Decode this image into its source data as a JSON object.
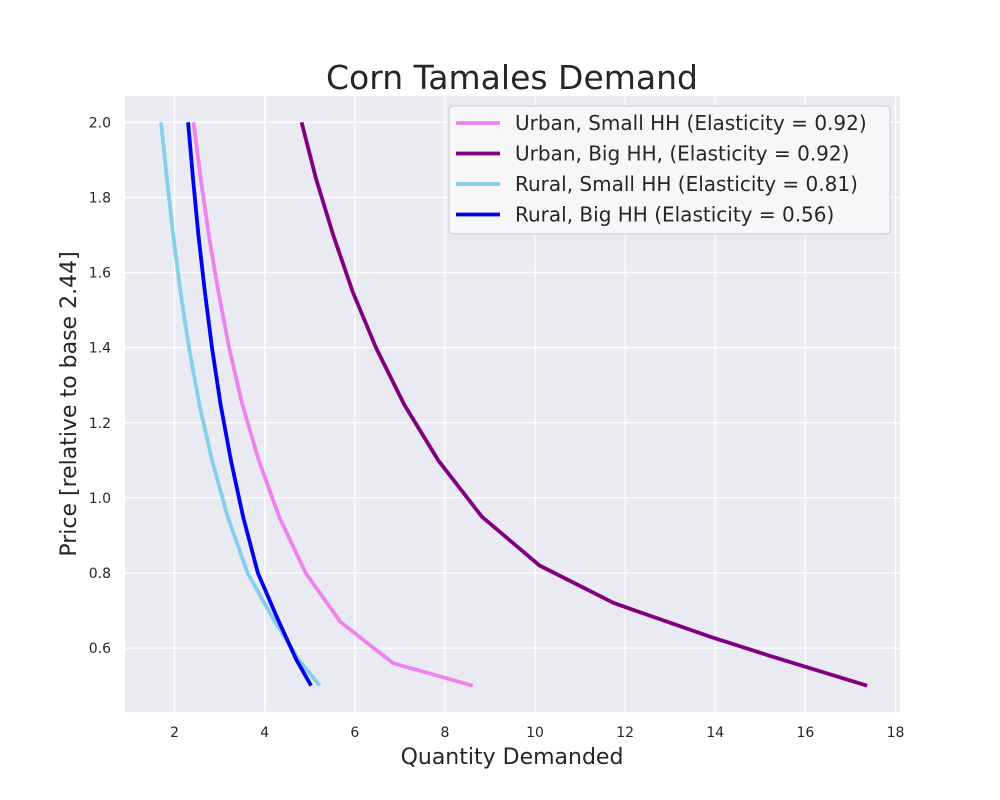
{
  "chart_data": {
    "type": "line",
    "title": "Corn Tamales Demand",
    "xlabel": "Quantity Demanded",
    "ylabel": "Price [relative to base 2.44]",
    "xlim": [
      0.9,
      18.1
    ],
    "ylim": [
      0.43,
      2.07
    ],
    "xticks": [
      2,
      4,
      6,
      8,
      10,
      12,
      14,
      16,
      18
    ],
    "yticks": [
      0.6,
      0.8,
      1.0,
      1.2,
      1.4,
      1.6,
      1.8,
      2.0
    ],
    "grid": true,
    "legend_position": "top-right",
    "colors": {
      "plot_background": "#eaeaf2",
      "grid": "#ffffff",
      "legend_background": "#f7f7fa"
    },
    "series": [
      {
        "name": "Urban, Small HH (Elasticity = 0.92)",
        "color": "#ee82ee",
        "points": [
          [
            2.42,
            2.0
          ],
          [
            2.58,
            1.85
          ],
          [
            2.76,
            1.7
          ],
          [
            2.97,
            1.55
          ],
          [
            3.21,
            1.4
          ],
          [
            3.5,
            1.25
          ],
          [
            3.87,
            1.1
          ],
          [
            4.32,
            0.95
          ],
          [
            4.91,
            0.8
          ],
          [
            5.68,
            0.67
          ],
          [
            6.85,
            0.56
          ],
          [
            8.62,
            0.5
          ]
        ]
      },
      {
        "name": "Urban, Big HH, (Elasticity = 0.92)",
        "color": "#800080",
        "points": [
          [
            4.82,
            2.0
          ],
          [
            5.14,
            1.85
          ],
          [
            5.52,
            1.7
          ],
          [
            5.95,
            1.55
          ],
          [
            6.47,
            1.4
          ],
          [
            7.09,
            1.25
          ],
          [
            7.85,
            1.1
          ],
          [
            8.82,
            0.95
          ],
          [
            10.1,
            0.82
          ],
          [
            11.75,
            0.72
          ],
          [
            13.9,
            0.63
          ],
          [
            15.2,
            0.58
          ],
          [
            17.37,
            0.5
          ]
        ]
      },
      {
        "name": "Rural, Small HH (Elasticity = 0.81)",
        "color": "#87ceeb",
        "points": [
          [
            1.7,
            2.0
          ],
          [
            1.83,
            1.85
          ],
          [
            1.97,
            1.7
          ],
          [
            2.13,
            1.55
          ],
          [
            2.32,
            1.4
          ],
          [
            2.55,
            1.25
          ],
          [
            2.83,
            1.1
          ],
          [
            3.18,
            0.95
          ],
          [
            3.62,
            0.8
          ],
          [
            4.18,
            0.68
          ],
          [
            4.75,
            0.57
          ],
          [
            5.22,
            0.5
          ]
        ]
      },
      {
        "name": "Rural, Big HH (Elasticity = 0.56)",
        "color": "#0000ee",
        "points": [
          [
            2.3,
            2.0
          ],
          [
            2.41,
            1.85
          ],
          [
            2.53,
            1.7
          ],
          [
            2.67,
            1.55
          ],
          [
            2.83,
            1.4
          ],
          [
            3.02,
            1.25
          ],
          [
            3.25,
            1.1
          ],
          [
            3.52,
            0.95
          ],
          [
            3.85,
            0.8
          ],
          [
            4.28,
            0.68
          ],
          [
            4.7,
            0.57
          ],
          [
            5.03,
            0.5
          ]
        ]
      }
    ]
  }
}
